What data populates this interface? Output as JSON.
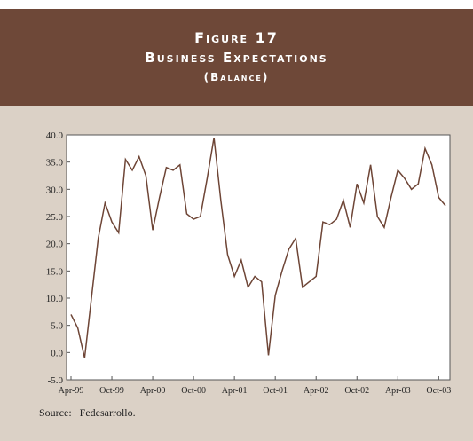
{
  "header": {
    "title": "Figure 17",
    "subtitle": "Business Expectations",
    "note": "(Balance)"
  },
  "chart_data": {
    "type": "line",
    "categories": [
      "Apr-99",
      null,
      null,
      null,
      null,
      null,
      "Oct-99",
      null,
      null,
      null,
      null,
      null,
      "Apr-00",
      null,
      null,
      null,
      null,
      null,
      "Oct-00",
      null,
      null,
      null,
      null,
      null,
      "Apr-01",
      null,
      null,
      null,
      null,
      null,
      "Oct-01",
      null,
      null,
      null,
      null,
      null,
      "Apr-02",
      null,
      null,
      null,
      null,
      null,
      "Oct-02",
      null,
      null,
      null,
      null,
      null,
      "Apr-03",
      null,
      null,
      null,
      null,
      null,
      "Oct-03",
      null
    ],
    "series": [
      {
        "color": "#6e4536",
        "values": [
          7,
          4.5,
          -1,
          10,
          21,
          27.5,
          24,
          22,
          35.5,
          33.5,
          36,
          32.5,
          22.5,
          28.5,
          34,
          33.5,
          34.5,
          25.5,
          24.5,
          25,
          32,
          39.5,
          28,
          18,
          14,
          17,
          12,
          14,
          13,
          -0.5,
          10.5,
          15,
          19,
          21,
          12,
          13,
          14,
          24,
          23.5,
          24.5,
          28,
          23,
          31,
          27.5,
          34.5,
          25,
          23,
          28.5,
          33.5,
          32,
          30,
          31,
          37.5,
          34.5,
          28.5,
          27
        ]
      }
    ],
    "ylim": [
      -5,
      40
    ],
    "yticks": [
      {
        "value": -5,
        "label": "-5.0"
      },
      {
        "value": 0,
        "label": "0.0"
      },
      {
        "value": 5,
        "label": "5.0"
      },
      {
        "value": 10,
        "label": "10.0"
      },
      {
        "value": 15,
        "label": "15.0"
      },
      {
        "value": 20,
        "label": "20.0"
      },
      {
        "value": 25,
        "label": "25.0"
      },
      {
        "value": 30,
        "label": "30.0"
      },
      {
        "value": 35,
        "label": "35.0"
      },
      {
        "value": 40,
        "label": "40.0"
      }
    ]
  },
  "source": {
    "label": "Source:",
    "text": "Fedesarrollo."
  }
}
